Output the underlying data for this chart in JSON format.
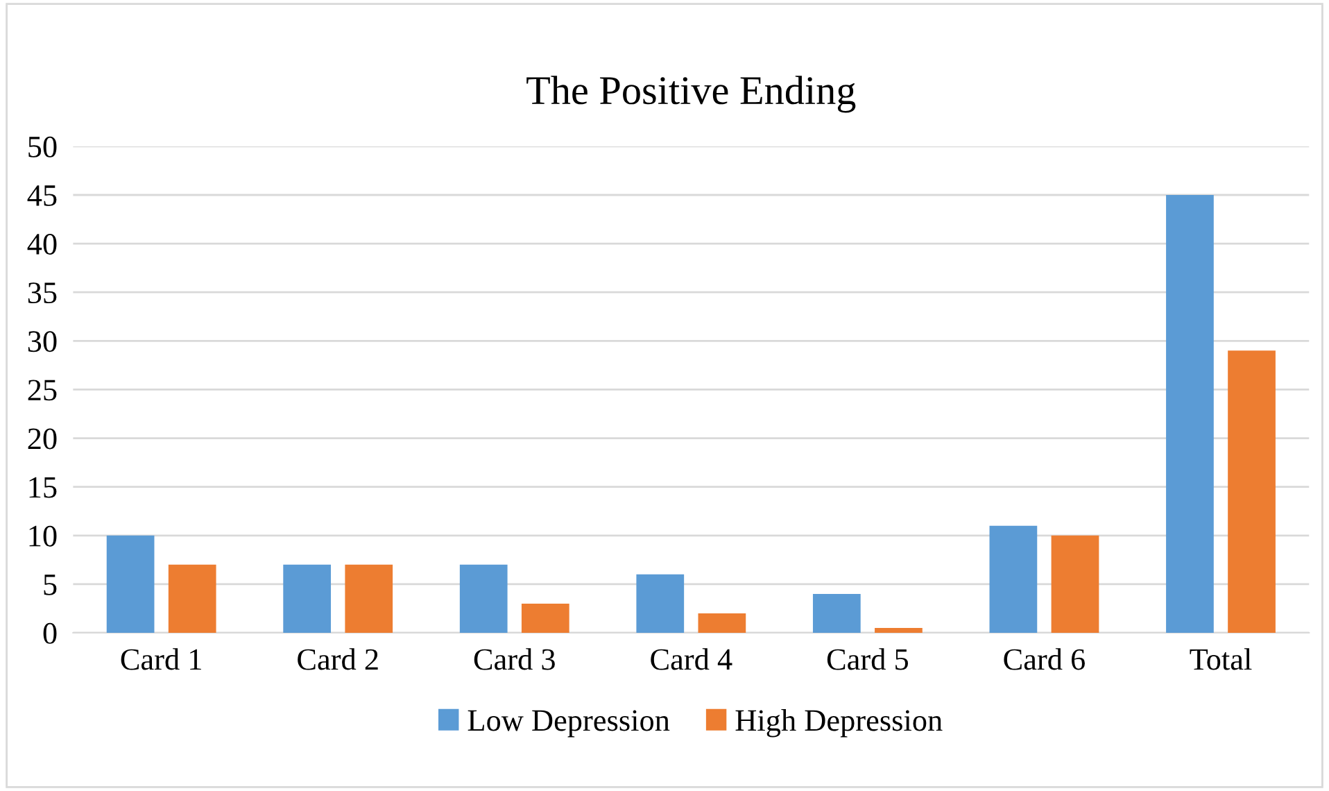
{
  "chart_data": {
    "type": "bar",
    "title": "The Positive Ending",
    "categories": [
      "Card 1",
      "Card 2",
      "Card 3",
      "Card 4",
      "Card 5",
      "Card 6",
      "Total"
    ],
    "series": [
      {
        "name": "Low Depression",
        "color": "#5b9bd5",
        "values": [
          10,
          7,
          7,
          6,
          4,
          11,
          45
        ]
      },
      {
        "name": "High Depression",
        "color": "#ed7d31",
        "values": [
          7,
          7,
          3,
          2,
          0.5,
          10,
          29
        ]
      }
    ],
    "ylim": [
      0,
      50
    ],
    "yticks": [
      0,
      5,
      10,
      15,
      20,
      25,
      30,
      35,
      40,
      45,
      50
    ],
    "grid": "y",
    "legend": "bottom"
  }
}
